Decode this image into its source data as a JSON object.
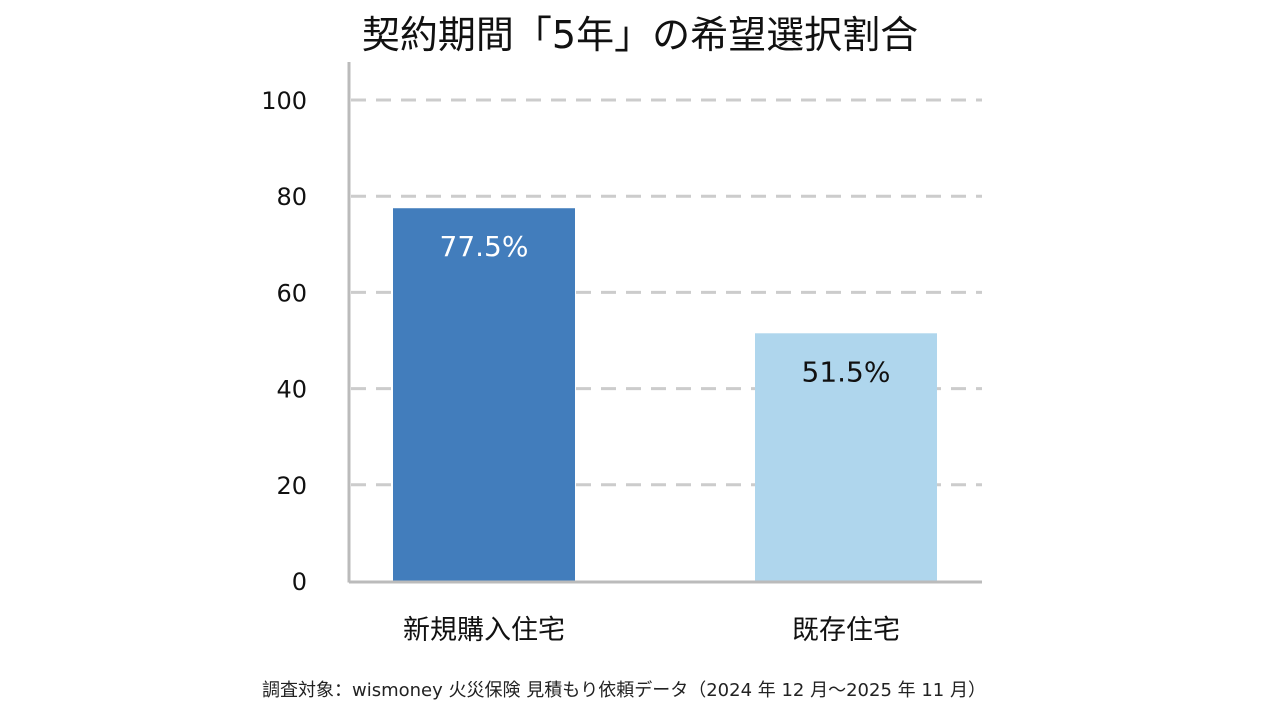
{
  "chart_data": {
    "type": "bar",
    "title": "契約期間「5年」の希望選択割合",
    "categories": [
      "新規購入住宅",
      "既存住宅"
    ],
    "values": [
      77.5,
      51.5
    ],
    "value_labels": [
      "77.5%",
      "51.5%"
    ],
    "colors": [
      "#427dbc",
      "#afd6ed"
    ],
    "value_label_colors": [
      "#ffffff",
      "#111111"
    ],
    "ylim": [
      0,
      100
    ],
    "yticks": [
      0,
      20,
      40,
      60,
      80,
      100
    ],
    "grid": true,
    "xlabel": "",
    "ylabel": ""
  },
  "footnote": "調査対象：wismoney 火災保険 見積もり依頼データ（2024 年 12 月〜2025 年 11 月）"
}
